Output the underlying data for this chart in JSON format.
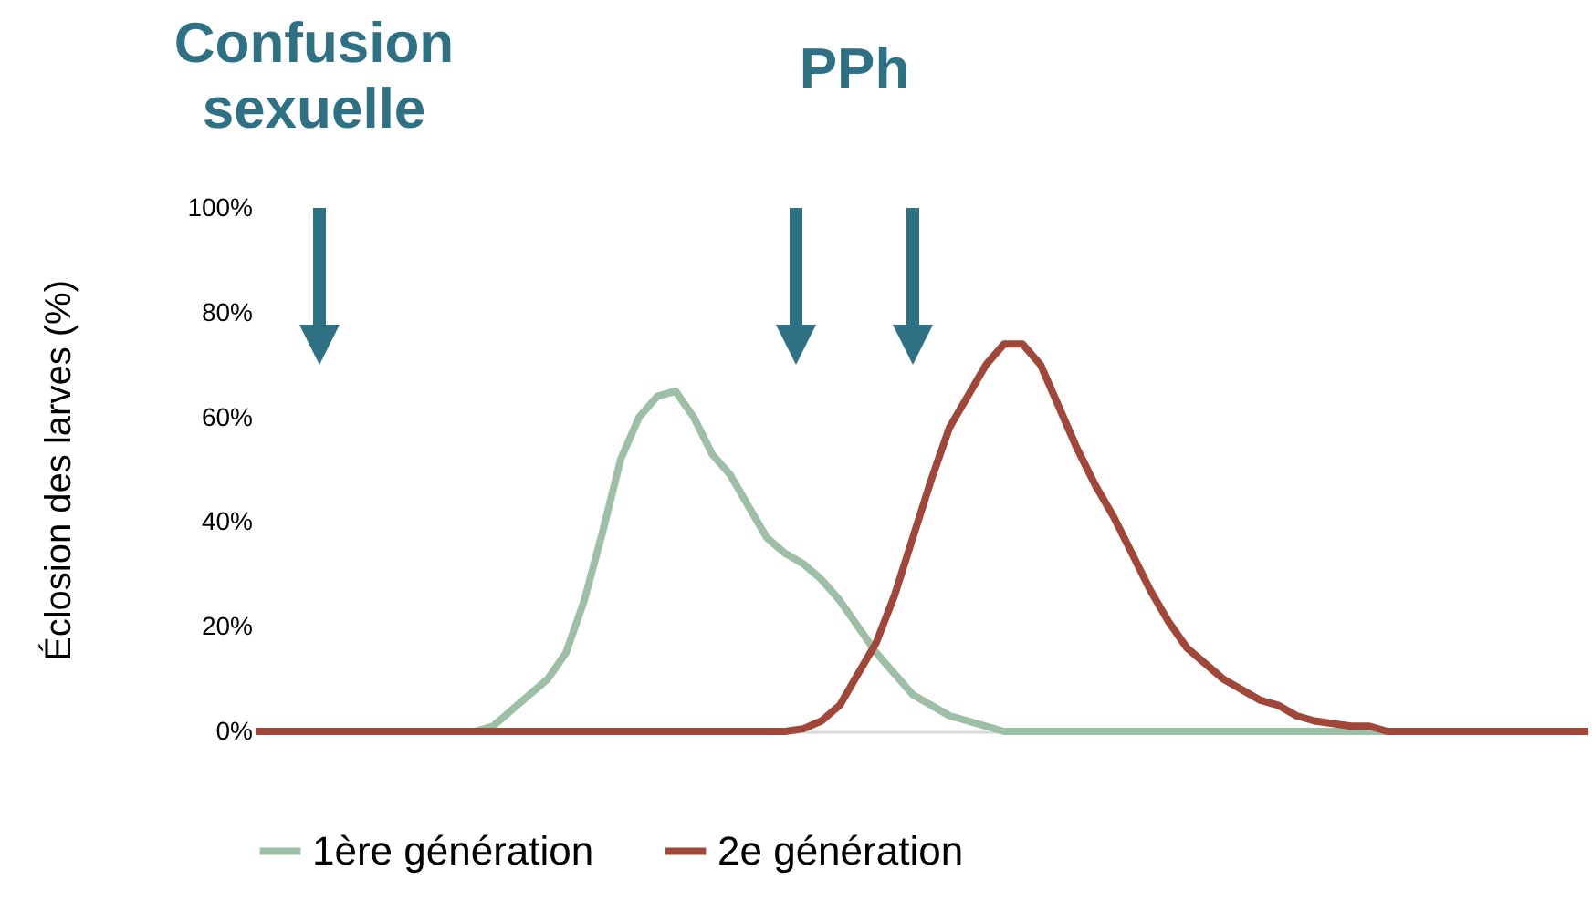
{
  "chart_data": {
    "type": "line",
    "annotations": [
      "Confusion sexuelle",
      "PPh"
    ],
    "ylabel": "Éclosion des larves (%)",
    "categories": [
      null,
      null,
      null,
      null,
      null,
      null,
      null,
      null,
      null,
      null,
      null,
      null,
      null,
      null,
      null,
      null,
      null,
      null,
      null,
      null,
      null,
      null,
      null,
      null,
      null,
      null,
      null,
      null,
      null,
      null,
      null,
      null,
      null,
      null,
      null,
      null,
      null,
      null,
      null,
      null,
      null,
      null,
      null,
      null,
      null,
      null,
      null,
      null,
      null,
      null,
      null,
      null,
      null,
      null,
      null,
      null,
      null,
      null,
      null,
      null,
      null,
      null,
      null,
      null,
      null,
      null,
      null,
      null,
      null,
      null,
      null,
      null,
      null,
      null
    ],
    "ylim": [
      0,
      100
    ],
    "yticks": [
      {
        "value": 0,
        "label": "0%"
      },
      {
        "value": 20,
        "label": "20%"
      },
      {
        "value": 40,
        "label": "40%"
      },
      {
        "value": 60,
        "label": "60%"
      },
      {
        "value": 80,
        "label": "80%"
      },
      {
        "value": 100,
        "label": "100%"
      }
    ],
    "series": [
      {
        "name": "1ère génération",
        "color": "#9dbfa6",
        "values": [
          0,
          0,
          0,
          0,
          0,
          0,
          0,
          0,
          0,
          0,
          0,
          0,
          0,
          1,
          4,
          7,
          10,
          15,
          25,
          38,
          52,
          60,
          64,
          65,
          60,
          53,
          49,
          43,
          37,
          34,
          32,
          29,
          25,
          20,
          15,
          11,
          7,
          5,
          3,
          2,
          1,
          0,
          0,
          0,
          0,
          0,
          0,
          0,
          0,
          0,
          0,
          0,
          0,
          0,
          0,
          0,
          0,
          0,
          0,
          0,
          0,
          0,
          0,
          0,
          0,
          0,
          0,
          0,
          0,
          0,
          0,
          0,
          0,
          0
        ]
      },
      {
        "name": "2e génération",
        "color": "#a0473a",
        "values": [
          0,
          0,
          0,
          0,
          0,
          0,
          0,
          0,
          0,
          0,
          0,
          0,
          0,
          0,
          0,
          0,
          0,
          0,
          0,
          0,
          0,
          0,
          0,
          0,
          0,
          0,
          0,
          0,
          0,
          0,
          0.5,
          2,
          5,
          11,
          17,
          26,
          37,
          48,
          58,
          64,
          70,
          74,
          74,
          70,
          62,
          54,
          47,
          41,
          34,
          27,
          21,
          16,
          13,
          10,
          8,
          6,
          5,
          3,
          2,
          1.5,
          1,
          1,
          0,
          0,
          0,
          0,
          0,
          0,
          0,
          0,
          0,
          0,
          0,
          0
        ]
      }
    ],
    "legend": "bottom",
    "grid": false
  }
}
